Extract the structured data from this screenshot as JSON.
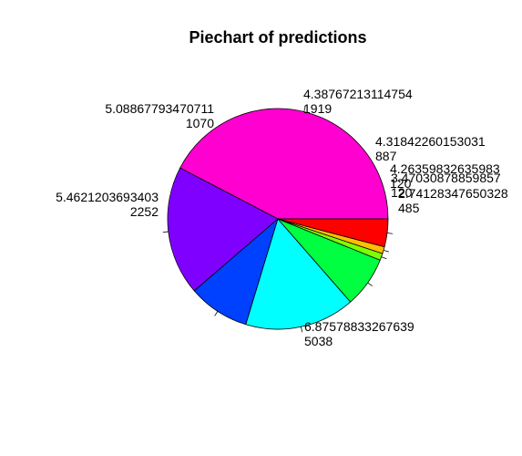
{
  "chart_data": {
    "type": "pie",
    "title": "Piechart of predictions",
    "slices": [
      {
        "label": "6.87578833267639",
        "value": 5038,
        "value_text": "5038",
        "color": "#FF00D0"
      },
      {
        "label": "5.4621203693403",
        "value": 2252,
        "value_text": "2252",
        "color": "#8000FF"
      },
      {
        "label": "5.08867793470711",
        "value": 1070,
        "value_text": "1070",
        "color": "#0040FF"
      },
      {
        "label": "4.38767213114754",
        "value": 1919,
        "value_text": "1919",
        "color": "#00FFFF"
      },
      {
        "label": "4.31842260153031",
        "value": 887,
        "value_text": "887",
        "color": "#00FF40"
      },
      {
        "label": "4.26359832635983",
        "value": 120,
        "value_text": "120",
        "color": "#80FF00"
      },
      {
        "label": "3.47030878859857",
        "value": 120,
        "value_text": "120",
        "color": "#FFBF00"
      },
      {
        "label": "2.74128347650328",
        "value": 485,
        "value_text": "485",
        "color": "#FF0000"
      }
    ],
    "legend": "none",
    "grid": false
  }
}
